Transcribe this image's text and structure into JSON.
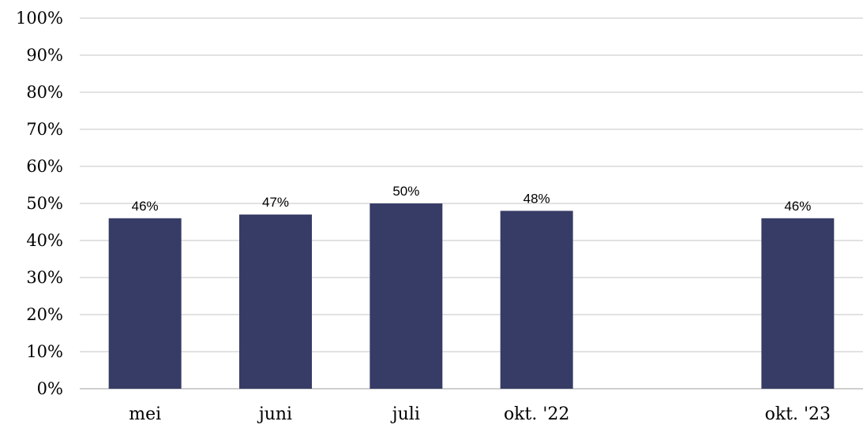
{
  "chart_data": {
    "type": "bar",
    "categories": [
      "mei",
      "juni",
      "juli",
      "okt. '22",
      "",
      "okt. '23"
    ],
    "values": [
      46,
      47,
      50,
      48,
      null,
      46
    ],
    "data_labels": [
      "46%",
      "47%",
      "50%",
      "48%",
      "",
      "46%"
    ],
    "y_ticks": [
      "0%",
      "10%",
      "20%",
      "30%",
      "40%",
      "50%",
      "60%",
      "70%",
      "80%",
      "90%",
      "100%"
    ],
    "ylim": [
      0,
      100
    ],
    "grid": true,
    "legend": "none",
    "colors": {
      "bar": "#373c66"
    }
  }
}
